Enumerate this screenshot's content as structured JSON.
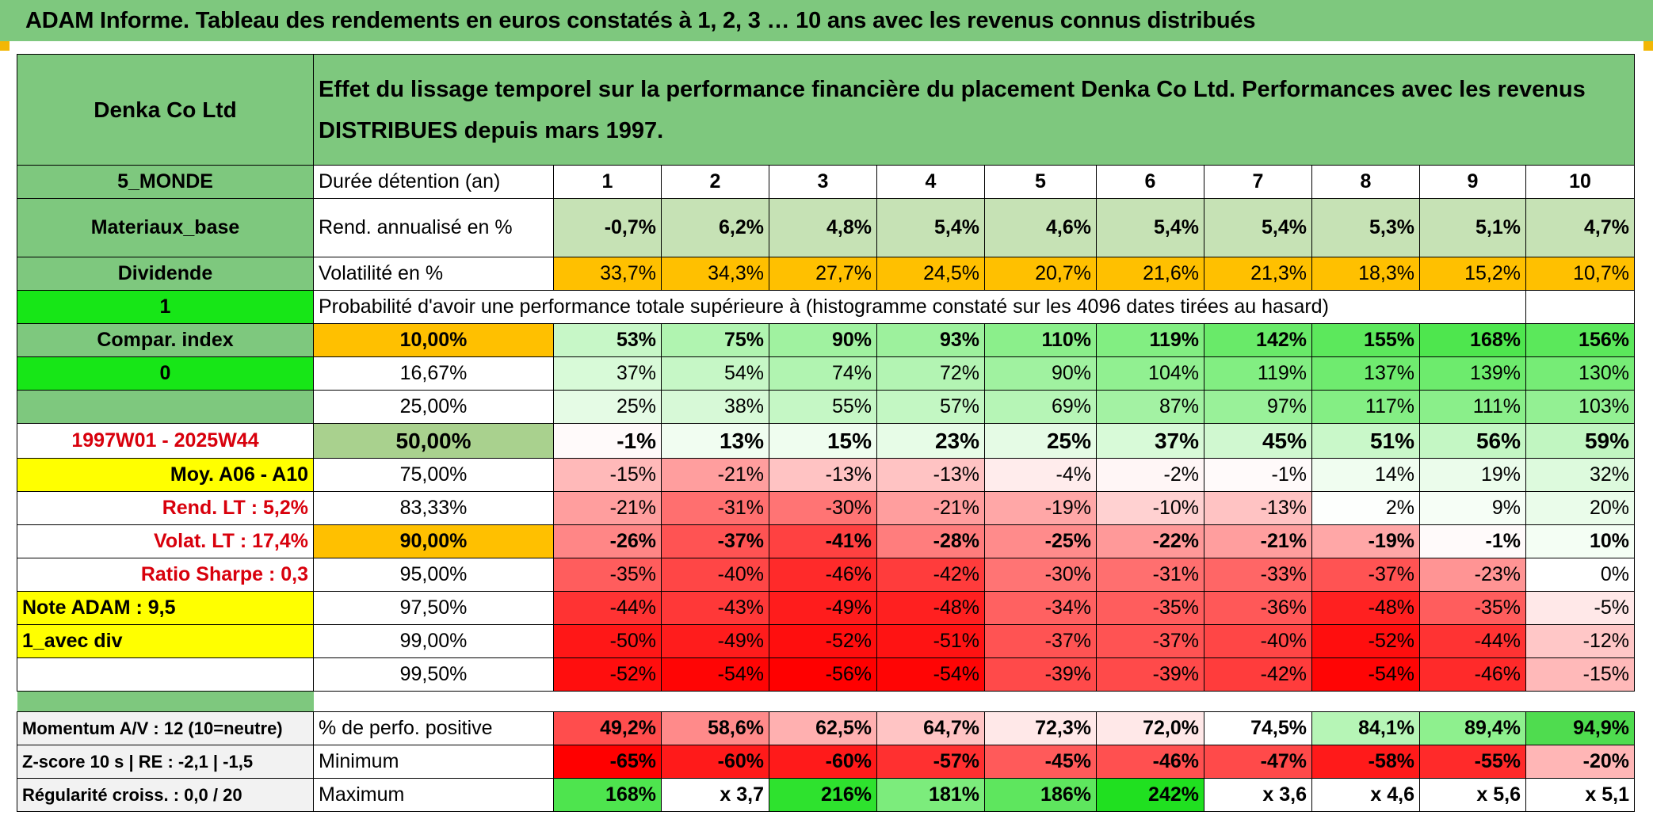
{
  "header": {
    "title": "ADAM Informe. Tableau des rendements en euros constatés à 1, 2, 3 … 10 ans avec les revenus connus distribués"
  },
  "company": "Denka Co Ltd",
  "description": "Effet du lissage temporel sur la performance financière du placement Denka Co Ltd. Performances avec les revenus DISTRIBUES depuis mars 1997.",
  "left_labels": {
    "region": "5_MONDE",
    "sector": "Materiaux_base",
    "type": "Dividende",
    "flag1": "1",
    "compar": "Compar. index",
    "flag0": "0",
    "period": "1997W01 - 2025W44",
    "moy": "Moy. A06 - A10",
    "rend_lt": "Rend. LT :   5,2%",
    "volat_lt": "Volat. LT :   17,4%",
    "sharpe": "Ratio Sharpe :    0,3",
    "note": "Note ADAM : 9,5",
    "avec_div": "1_avec div",
    "momentum": "Momentum A/V : 12 (10=neutre)",
    "zscore": "Z-score 10 s | RE : -2,1 | -1,5",
    "regularite": "Régularité croiss. : 0,0 / 20"
  },
  "durations_label": "Durée détention (an)",
  "durations": [
    "1",
    "2",
    "3",
    "4",
    "5",
    "6",
    "7",
    "8",
    "9",
    "10"
  ],
  "rend_label": "Rend. annualisé en %",
  "rend": [
    "-0,7%",
    "6,2%",
    "4,8%",
    "5,4%",
    "4,6%",
    "5,4%",
    "5,4%",
    "5,3%",
    "5,1%",
    "4,7%"
  ],
  "vol_label": "Volatilité en %",
  "vol": [
    "33,7%",
    "34,3%",
    "27,7%",
    "24,5%",
    "20,7%",
    "21,6%",
    "21,3%",
    "18,3%",
    "15,2%",
    "10,7%"
  ],
  "prob_label": "Probabilité d'avoir une performance totale supérieure à (histogramme constaté sur les 4096 dates tirées au hasard)",
  "quantiles": [
    {
      "p": "10,00%",
      "v": [
        "53%",
        "75%",
        "90%",
        "93%",
        "110%",
        "119%",
        "142%",
        "155%",
        "168%",
        "156%"
      ],
      "bold": true
    },
    {
      "p": "16,67%",
      "v": [
        "37%",
        "54%",
        "74%",
        "72%",
        "90%",
        "104%",
        "119%",
        "137%",
        "139%",
        "130%"
      ],
      "bold": false
    },
    {
      "p": "25,00%",
      "v": [
        "25%",
        "38%",
        "55%",
        "57%",
        "69%",
        "87%",
        "97%",
        "117%",
        "111%",
        "103%"
      ],
      "bold": false
    },
    {
      "p": "50,00%",
      "v": [
        "-1%",
        "13%",
        "15%",
        "23%",
        "25%",
        "37%",
        "45%",
        "51%",
        "56%",
        "59%"
      ],
      "bold": true
    },
    {
      "p": "75,00%",
      "v": [
        "-15%",
        "-21%",
        "-13%",
        "-13%",
        "-4%",
        "-2%",
        "-1%",
        "14%",
        "19%",
        "32%"
      ],
      "bold": false
    },
    {
      "p": "83,33%",
      "v": [
        "-21%",
        "-31%",
        "-30%",
        "-21%",
        "-19%",
        "-10%",
        "-13%",
        "2%",
        "9%",
        "20%"
      ],
      "bold": false
    },
    {
      "p": "90,00%",
      "v": [
        "-26%",
        "-37%",
        "-41%",
        "-28%",
        "-25%",
        "-22%",
        "-21%",
        "-19%",
        "-1%",
        "10%"
      ],
      "bold": true
    },
    {
      "p": "95,00%",
      "v": [
        "-35%",
        "-40%",
        "-46%",
        "-42%",
        "-30%",
        "-31%",
        "-33%",
        "-37%",
        "-23%",
        "0%"
      ],
      "bold": false
    },
    {
      "p": "97,50%",
      "v": [
        "-44%",
        "-43%",
        "-49%",
        "-48%",
        "-34%",
        "-35%",
        "-36%",
        "-48%",
        "-35%",
        "-5%"
      ],
      "bold": false
    },
    {
      "p": "99,00%",
      "v": [
        "-50%",
        "-49%",
        "-52%",
        "-51%",
        "-37%",
        "-37%",
        "-40%",
        "-52%",
        "-44%",
        "-12%"
      ],
      "bold": false
    },
    {
      "p": "99,50%",
      "v": [
        "-52%",
        "-54%",
        "-56%",
        "-54%",
        "-39%",
        "-39%",
        "-42%",
        "-54%",
        "-46%",
        "-15%"
      ],
      "bold": false
    }
  ],
  "pos_label": "% de perfo. positive",
  "pos": [
    "49,2%",
    "58,6%",
    "62,5%",
    "64,7%",
    "72,3%",
    "72,0%",
    "74,5%",
    "84,1%",
    "89,4%",
    "94,9%"
  ],
  "min_label": "Minimum",
  "min": [
    "-65%",
    "-60%",
    "-60%",
    "-57%",
    "-45%",
    "-46%",
    "-47%",
    "-58%",
    "-55%",
    "-20%"
  ],
  "max_label": "Maximum",
  "max": [
    "168%",
    "x 3,7",
    "216%",
    "181%",
    "186%",
    "242%",
    "x 3,6",
    "x 4,6",
    "x 5,6",
    "x 5,1"
  ],
  "colors": {
    "header_green": "#7ec87e",
    "bright_green": "#17e617",
    "yellow": "#ffff00",
    "orange": "#ffc000",
    "label_red": "#d8000c"
  }
}
